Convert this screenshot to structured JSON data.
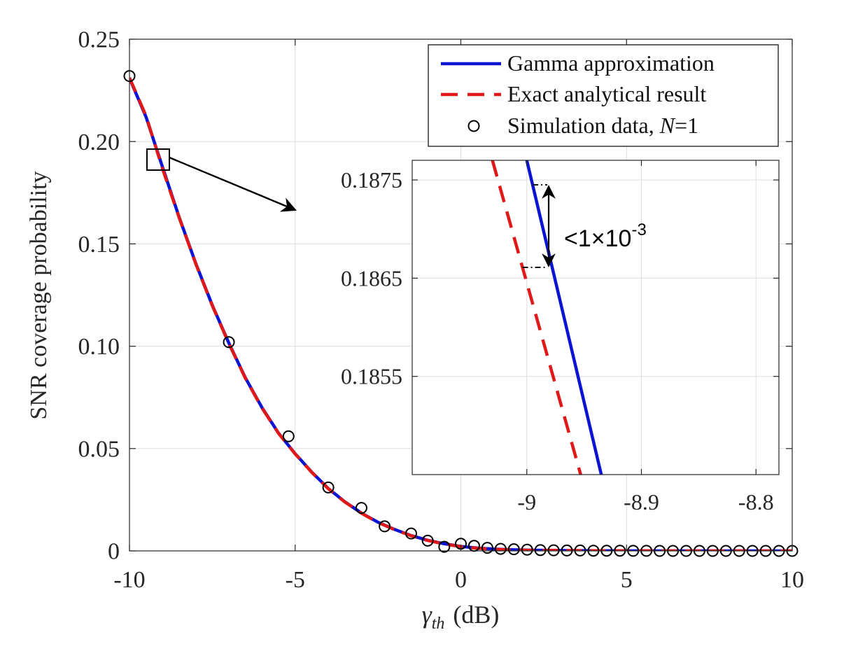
{
  "chart_data": [
    {
      "type": "line",
      "role": "main",
      "xlabel_symbol": "γ",
      "xlabel_subscript": "th",
      "xlabel_unit": "(dB)",
      "ylabel": "SNR coverage probability",
      "xlim": [
        -10,
        10
      ],
      "ylim": [
        0,
        0.25
      ],
      "x_ticks": [
        -10,
        -5,
        0,
        5,
        10
      ],
      "x_tick_labels": [
        "-10",
        "-5",
        "0",
        "5",
        "10"
      ],
      "y_ticks": [
        0,
        0.05,
        0.1,
        0.15,
        0.2,
        0.25
      ],
      "y_tick_labels": [
        "0",
        "0.05",
        "0.10",
        "0.15",
        "0.20",
        "0.25"
      ],
      "grid": true,
      "legend_position": "top-right",
      "legend": [
        {
          "label": "Gamma approximation",
          "style": "solid",
          "color": "#0a14d2"
        },
        {
          "label": "Exact analytical result",
          "style": "dashed",
          "color": "#e01818"
        },
        {
          "label_prefix": "Simulation data, ",
          "label_var": "N",
          "label_suffix": "=1",
          "style": "circle",
          "color": "#000000"
        }
      ],
      "series": [
        {
          "name": "Gamma approximation",
          "x": [
            -10,
            -9.5,
            -9,
            -8.5,
            -8,
            -7.5,
            -7,
            -6.5,
            -6,
            -5.5,
            -5,
            -4.5,
            -4,
            -3.5,
            -3,
            -2.5,
            -2,
            -1.5,
            -1,
            -0.5,
            0,
            0.5,
            1,
            1.5,
            2,
            3,
            4,
            5,
            6,
            8,
            10
          ],
          "y": [
            0.231,
            0.212,
            0.1874,
            0.163,
            0.1405,
            0.12,
            0.1015,
            0.0845,
            0.07,
            0.0575,
            0.0475,
            0.0385,
            0.0305,
            0.024,
            0.0185,
            0.014,
            0.0105,
            0.0075,
            0.0052,
            0.0035,
            0.0022,
            0.0014,
            0.0009,
            0.0006,
            0.0004,
            0.0002,
            0.0001,
            5e-05,
            2e-05,
            0,
            0
          ]
        },
        {
          "name": "Exact analytical result",
          "x": [
            -10,
            -9.5,
            -9,
            -8.5,
            -8,
            -7.5,
            -7,
            -6.5,
            -6,
            -5.5,
            -5,
            -4.5,
            -4,
            -3.5,
            -3,
            -2.5,
            -2,
            -1.5,
            -1,
            -0.5,
            0,
            0.5,
            1,
            1.5,
            2,
            3,
            4,
            5,
            6,
            8,
            10
          ],
          "y": [
            0.2312,
            0.2125,
            0.1866,
            0.1628,
            0.1403,
            0.1198,
            0.1013,
            0.0843,
            0.0698,
            0.0574,
            0.0474,
            0.0384,
            0.0304,
            0.0239,
            0.0184,
            0.0139,
            0.0104,
            0.0074,
            0.0051,
            0.0034,
            0.0021,
            0.0013,
            0.0008,
            0.0005,
            0.0003,
            0.0002,
            0.0001,
            5e-05,
            2e-05,
            0,
            0
          ]
        },
        {
          "name": "Simulation data, N=1",
          "x": [
            -10,
            -7,
            -5.2,
            -4,
            -3,
            -2.3,
            -1.5,
            -1,
            -0.5,
            0,
            0.4,
            0.8,
            1.2,
            1.6,
            2,
            2.4,
            2.8,
            3.2,
            3.6,
            4,
            4.4,
            4.8,
            5.2,
            5.6,
            6,
            6.4,
            6.8,
            7.2,
            7.6,
            8,
            8.4,
            8.8,
            9.2,
            9.6,
            10
          ],
          "y": [
            0.232,
            0.102,
            0.056,
            0.031,
            0.021,
            0.012,
            0.0085,
            0.005,
            0.002,
            0.0035,
            0.0025,
            0.0015,
            0.001,
            0.0008,
            0.0006,
            0.0004,
            0.0003,
            0.0002,
            0.0002,
            0.0001,
            0.0001,
            0.0001,
            5e-05,
            5e-05,
            0,
            0,
            0,
            0,
            0,
            0,
            0,
            0,
            0,
            0,
            0
          ]
        }
      ]
    },
    {
      "type": "line",
      "role": "inset",
      "xlim": [
        -9.1,
        -8.78
      ],
      "ylim": [
        0.1845,
        0.1877
      ],
      "x_ticks": [
        -9,
        -8.9,
        -8.8
      ],
      "x_tick_labels": [
        "-9",
        "-8.9",
        "-8.8"
      ],
      "y_ticks": [
        0.1855,
        0.1865,
        0.1875
      ],
      "y_tick_labels": [
        "0.1855",
        "0.1865",
        "0.1875"
      ],
      "grid": true,
      "series": [
        {
          "name": "Gamma approximation",
          "x": [
            -9.0,
            -8.935
          ],
          "y": [
            0.1877,
            0.1845
          ]
        },
        {
          "name": "Exact analytical result",
          "x": [
            -9.03,
            -8.953
          ],
          "y": [
            0.1877,
            0.1845
          ]
        }
      ],
      "annotation": {
        "text_base": "<1×10",
        "text_exp": "-3",
        "upper_y": 0.18745,
        "lower_y": 0.18661
      }
    }
  ]
}
